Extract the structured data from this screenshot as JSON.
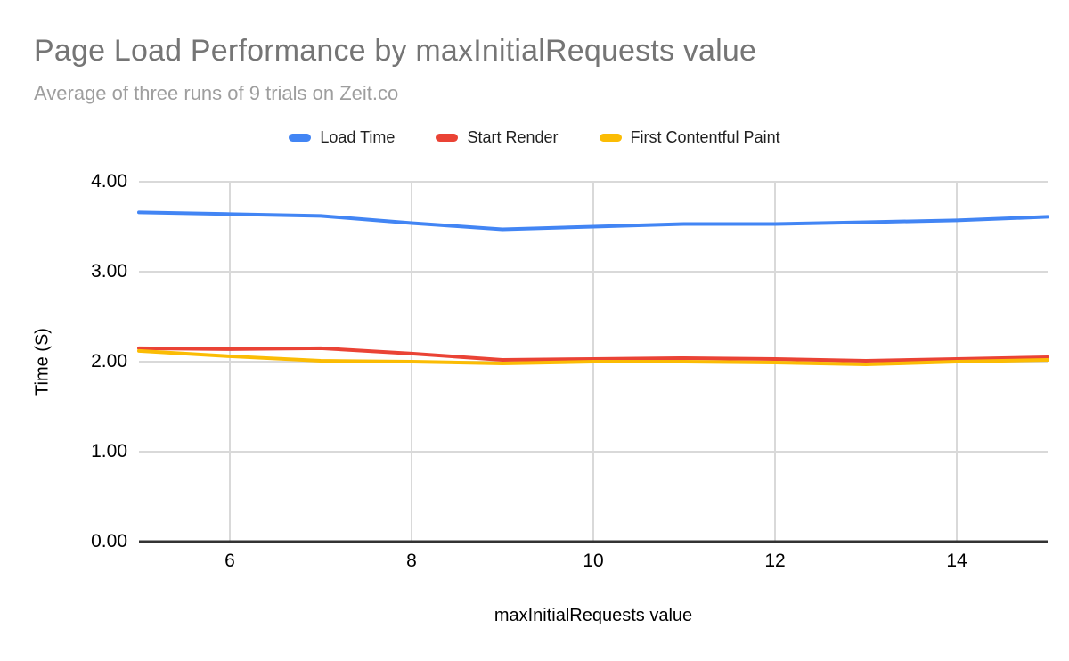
{
  "page": {
    "background": "#ffffff"
  },
  "header": {
    "title": "Page Load Performance by maxInitialRequests value",
    "subtitle": "Average of three runs of 9 trials on Zeit.co",
    "title_color": "#757575",
    "subtitle_color": "#9e9e9e"
  },
  "legend": {
    "position": "top",
    "items": [
      {
        "label": "Load Time",
        "color": "#4285F4"
      },
      {
        "label": "Start Render",
        "color": "#EA4335"
      },
      {
        "label": "First Contentful Paint",
        "color": "#FBBC04"
      }
    ]
  },
  "chart_data": {
    "type": "line",
    "title": "Page Load Performance by maxInitialRequests value",
    "subtitle": "Average of three runs of 9 trials on Zeit.co",
    "xlabel": "maxInitialRequests value",
    "ylabel": "Time (S)",
    "xlim": [
      5,
      15
    ],
    "ylim": [
      0,
      4
    ],
    "x_ticks": [
      6,
      8,
      10,
      12,
      14
    ],
    "y_ticks": [
      0,
      1,
      2,
      3,
      4
    ],
    "y_tick_labels": [
      "0.00",
      "1.00",
      "2.00",
      "3.00",
      "4.00"
    ],
    "grid": true,
    "legend_position": "top",
    "x": [
      5,
      6,
      7,
      8,
      9,
      10,
      11,
      12,
      13,
      14,
      15
    ],
    "series": [
      {
        "name": "Load Time",
        "color": "#4285F4",
        "values": [
          3.66,
          3.64,
          3.62,
          3.54,
          3.47,
          3.5,
          3.53,
          3.53,
          3.55,
          3.57,
          3.61
        ]
      },
      {
        "name": "Start Render",
        "color": "#EA4335",
        "values": [
          2.15,
          2.14,
          2.15,
          2.09,
          2.02,
          2.03,
          2.04,
          2.03,
          2.01,
          2.03,
          2.05
        ]
      },
      {
        "name": "First Contentful Paint",
        "color": "#FBBC04",
        "values": [
          2.12,
          2.06,
          2.01,
          2.0,
          1.98,
          2.0,
          2.0,
          1.99,
          1.97,
          2.0,
          2.02
        ]
      }
    ],
    "styles": {
      "gridline_color": "#d9d9d9",
      "baseline_color": "#333333",
      "line_width": 4
    }
  }
}
